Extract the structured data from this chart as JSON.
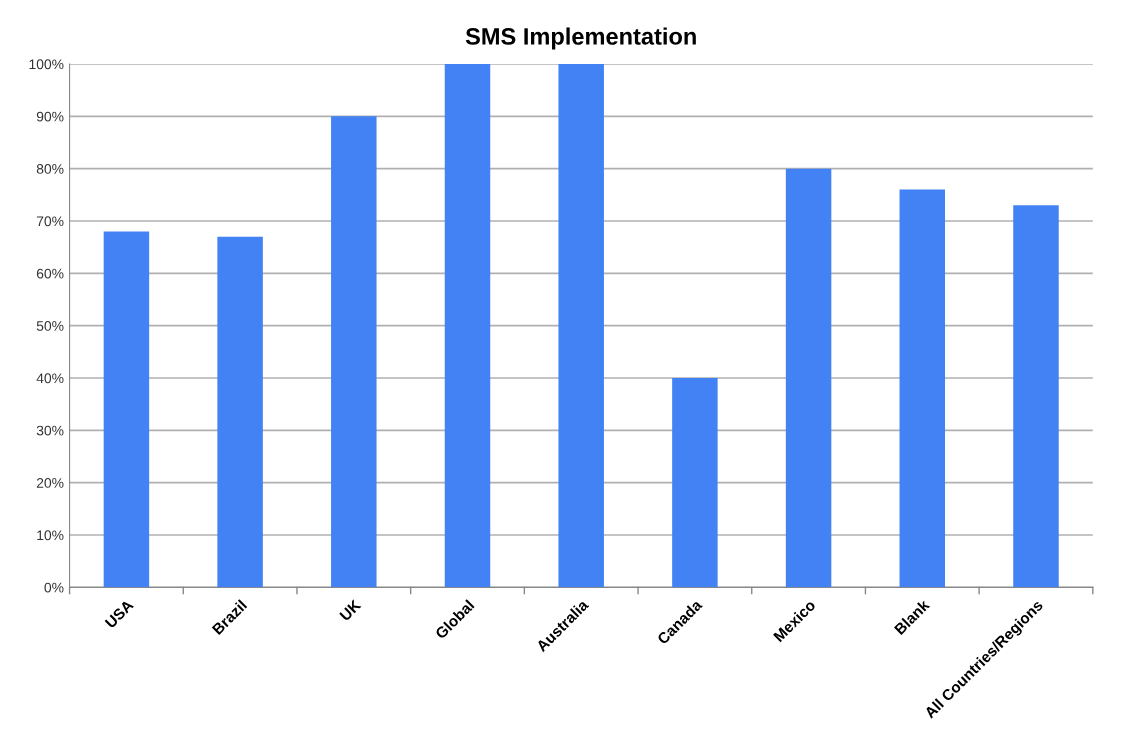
{
  "chart_data": {
    "type": "bar",
    "title": "SMS Implementation",
    "categories": [
      "USA",
      "Brazil",
      "UK",
      "Global",
      "Australia",
      "Canada",
      "Mexico",
      "Blank",
      "All Countries/Regions"
    ],
    "values": [
      68,
      67,
      90,
      100,
      100,
      40,
      80,
      76,
      73
    ],
    "color": "#4282f5",
    "ylim": [
      0,
      100
    ],
    "yticks": [
      {
        "value": 0,
        "label": "0%"
      },
      {
        "value": 10,
        "label": "10%"
      },
      {
        "value": 20,
        "label": "20%"
      },
      {
        "value": 30,
        "label": "30%"
      },
      {
        "value": 40,
        "label": "40%"
      },
      {
        "value": 50,
        "label": "50%"
      },
      {
        "value": 60,
        "label": "60%"
      },
      {
        "value": 70,
        "label": "70%"
      },
      {
        "value": 80,
        "label": "80%"
      },
      {
        "value": 90,
        "label": "90%"
      },
      {
        "value": 100,
        "label": "100%"
      }
    ],
    "grid": "y"
  }
}
